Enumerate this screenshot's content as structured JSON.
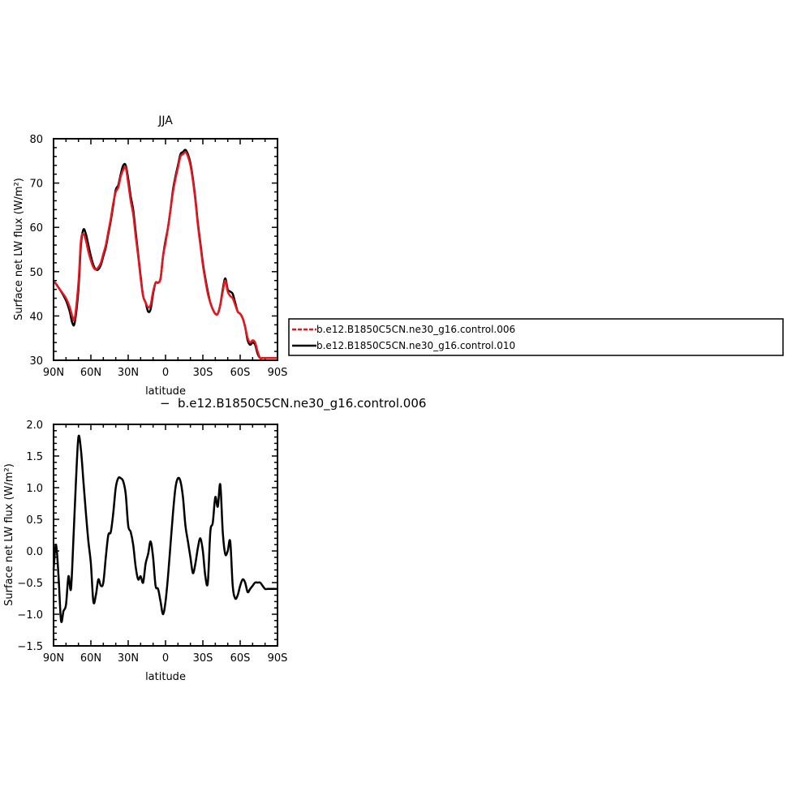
{
  "chart_data": [
    {
      "type": "line",
      "title": "JJA",
      "xlabel": "latitude",
      "ylabel": "Surface net LW flux (W/m²)",
      "xlim": [
        90,
        -90
      ],
      "ylim": [
        30,
        80
      ],
      "x_ticks": [
        {
          "value": 90,
          "label": "90N"
        },
        {
          "value": 60,
          "label": "60N"
        },
        {
          "value": 30,
          "label": "30N"
        },
        {
          "value": 0,
          "label": "0"
        },
        {
          "value": -30,
          "label": "30S"
        },
        {
          "value": -60,
          "label": "60S"
        },
        {
          "value": -90,
          "label": "90S"
        }
      ],
      "y_ticks": [
        {
          "value": 30,
          "label": "30"
        },
        {
          "value": 40,
          "label": "40"
        },
        {
          "value": 50,
          "label": "50"
        },
        {
          "value": 60,
          "label": "60"
        },
        {
          "value": 70,
          "label": "70"
        },
        {
          "value": 80,
          "label": "80"
        }
      ],
      "legend": {
        "placement": "right",
        "entries": [
          {
            "name": "b.e12.B1850C5CN.ne30_g16.control.006",
            "color": "#e8141e",
            "dash": true
          },
          {
            "name": "b.e12.B1850C5CN.ne30_g16.control.010",
            "color": "#000000",
            "dash": false
          }
        ]
      },
      "series": [
        {
          "name": "b.e12.B1850C5CN.ne30_g16.control.010",
          "color": "#000000",
          "x": [
            90,
            85,
            80,
            77,
            75,
            73,
            70,
            68,
            66,
            64,
            62,
            60,
            58,
            56,
            54,
            52,
            50,
            48,
            46,
            44,
            42,
            40,
            38,
            36,
            34,
            32,
            30,
            28,
            26,
            24,
            22,
            20,
            18,
            16,
            14,
            12,
            10,
            8,
            6,
            4,
            2,
            0,
            -2,
            -4,
            -6,
            -8,
            -10,
            -12,
            -14,
            -16,
            -18,
            -20,
            -22,
            -24,
            -26,
            -28,
            -30,
            -32,
            -34,
            -36,
            -38,
            -40,
            -42,
            -44,
            -46,
            -48,
            -50,
            -52,
            -54,
            -56,
            -58,
            -60,
            -62,
            -64,
            -66,
            -68,
            -70,
            -72,
            -74,
            -76,
            -78,
            -80,
            -82,
            -84,
            -86,
            -88,
            -90
          ],
          "values": [
            48,
            46,
            43.5,
            41,
            38.5,
            38.5,
            46,
            56,
            59.5,
            58.5,
            56,
            53.5,
            51.5,
            50.5,
            50.5,
            51.5,
            53.5,
            55.5,
            58.5,
            61.5,
            65,
            68.5,
            69.5,
            72,
            74,
            74,
            71,
            67,
            64,
            59,
            54,
            49,
            44.5,
            43,
            41,
            41.5,
            45,
            47.5,
            47.5,
            48.5,
            53.5,
            57,
            60,
            64,
            68.5,
            71.5,
            74,
            76.5,
            77,
            77.5,
            76.5,
            74.5,
            71,
            66.5,
            61,
            56.5,
            52,
            48.5,
            45.5,
            43,
            41.5,
            40.5,
            40.5,
            42.5,
            46,
            48.5,
            46,
            45.5,
            45,
            43,
            41,
            40.5,
            39.5,
            37.5,
            34.5,
            33.5,
            34,
            33.5,
            31.5,
            30.5,
            30.5,
            30.5,
            30.5,
            30.5,
            30.5,
            30.5,
            30.5
          ]
        },
        {
          "name": "b.e12.B1850C5CN.ne30_g16.control.006",
          "color": "#e8141e",
          "x": [
            90,
            85,
            80,
            77,
            75,
            73,
            70,
            68,
            66,
            64,
            62,
            60,
            58,
            56,
            54,
            52,
            50,
            48,
            46,
            44,
            42,
            40,
            38,
            36,
            34,
            32,
            30,
            28,
            26,
            24,
            22,
            20,
            18,
            16,
            14,
            12,
            10,
            8,
            6,
            4,
            2,
            0,
            -2,
            -4,
            -6,
            -8,
            -10,
            -12,
            -14,
            -16,
            -18,
            -20,
            -22,
            -24,
            -26,
            -28,
            -30,
            -32,
            -34,
            -36,
            -38,
            -40,
            -42,
            -44,
            -46,
            -48,
            -50,
            -52,
            -54,
            -56,
            -58,
            -60,
            -62,
            -64,
            -66,
            -68,
            -70,
            -72,
            -74,
            -76,
            -78,
            -80,
            -82,
            -84,
            -86,
            -88,
            -90
          ],
          "values": [
            48,
            46,
            44,
            42,
            40,
            39.5,
            47.5,
            57,
            58.5,
            57,
            54.5,
            52.5,
            51,
            50.5,
            51,
            52,
            54,
            56,
            59,
            62,
            65.5,
            68,
            69,
            71.5,
            73,
            73.5,
            70,
            66,
            63,
            58,
            53.5,
            48.5,
            44.5,
            43,
            42,
            42.5,
            45.5,
            47.5,
            47.5,
            48.5,
            53.5,
            56.5,
            60,
            64,
            68,
            71,
            73.5,
            76,
            76.5,
            77,
            76,
            74,
            70.5,
            66,
            60.5,
            56,
            51.5,
            48,
            45,
            43,
            41.5,
            40.5,
            40.5,
            42.5,
            45.5,
            48,
            45.5,
            44.5,
            44,
            42.5,
            41,
            40.5,
            39.5,
            37.5,
            35,
            34,
            34.5,
            34,
            32,
            30.5,
            30.5,
            30.5,
            30.5,
            30.5,
            30.5,
            30.5,
            30.5
          ]
        }
      ]
    },
    {
      "type": "line",
      "title": "b.e12.B1850C5CN.ne30_g16.control.006",
      "xlabel": "latitude",
      "ylabel": "Surface net LW flux (W/m²)",
      "xlim": [
        90,
        -90
      ],
      "ylim": [
        -1.5,
        2.0
      ],
      "x_ticks": [
        {
          "value": 90,
          "label": "90N"
        },
        {
          "value": 60,
          "label": "60N"
        },
        {
          "value": 30,
          "label": "30N"
        },
        {
          "value": 0,
          "label": "0"
        },
        {
          "value": -30,
          "label": "30S"
        },
        {
          "value": -60,
          "label": "60S"
        },
        {
          "value": -90,
          "label": "90S"
        }
      ],
      "y_ticks": [
        {
          "value": -1.5,
          "label": "−1.5"
        },
        {
          "value": -1.0,
          "label": "−1.0"
        },
        {
          "value": -0.5,
          "label": "−0.5"
        },
        {
          "value": 0.0,
          "label": "0.0"
        },
        {
          "value": 0.5,
          "label": "0.5"
        },
        {
          "value": 1.0,
          "label": "1.0"
        },
        {
          "value": 1.5,
          "label": "1.5"
        },
        {
          "value": 2.0,
          "label": "2.0"
        }
      ],
      "series": [
        {
          "color": "#000000",
          "x": [
            90,
            88,
            86,
            84,
            82,
            80,
            78,
            76,
            74,
            72,
            70,
            68,
            66,
            64,
            62,
            60,
            58,
            56,
            54,
            52,
            50,
            48,
            46,
            44,
            42,
            40,
            38,
            36,
            34,
            32,
            30,
            28,
            26,
            24,
            22,
            20,
            18,
            16,
            14,
            12,
            10,
            8,
            6,
            4,
            2,
            0,
            -2,
            -4,
            -6,
            -8,
            -10,
            -12,
            -14,
            -16,
            -18,
            -20,
            -22,
            -24,
            -26,
            -28,
            -30,
            -32,
            -34,
            -36,
            -38,
            -40,
            -42,
            -44,
            -46,
            -48,
            -50,
            -52,
            -54,
            -56,
            -58,
            -60,
            -62,
            -64,
            -66,
            -68,
            -70,
            -72,
            -74,
            -76,
            -78,
            -80,
            -82,
            -84,
            -86,
            -88,
            -90
          ],
          "values": [
            -0.3,
            0.1,
            -0.4,
            -1.1,
            -0.95,
            -0.85,
            -0.4,
            -0.6,
            0.2,
            1.1,
            1.8,
            1.6,
            1.1,
            0.6,
            0.15,
            -0.2,
            -0.8,
            -0.7,
            -0.45,
            -0.55,
            -0.5,
            -0.1,
            0.25,
            0.3,
            0.6,
            1.0,
            1.15,
            1.15,
            1.1,
            0.9,
            0.4,
            0.3,
            0.1,
            -0.25,
            -0.45,
            -0.4,
            -0.5,
            -0.2,
            -0.05,
            0.15,
            -0.1,
            -0.55,
            -0.6,
            -0.8,
            -1.0,
            -0.8,
            -0.4,
            0.1,
            0.6,
            1.0,
            1.15,
            1.1,
            0.85,
            0.4,
            0.15,
            -0.1,
            -0.35,
            -0.2,
            0.05,
            0.2,
            0.0,
            -0.4,
            -0.5,
            0.3,
            0.45,
            0.85,
            0.7,
            1.05,
            0.3,
            -0.05,
            0.0,
            0.15,
            -0.55,
            -0.75,
            -0.7,
            -0.55,
            -0.45,
            -0.5,
            -0.65,
            -0.6,
            -0.55,
            -0.5,
            -0.5,
            -0.5,
            -0.55,
            -0.6,
            -0.6,
            -0.6,
            -0.6,
            -0.6,
            -0.6
          ]
        }
      ]
    }
  ]
}
